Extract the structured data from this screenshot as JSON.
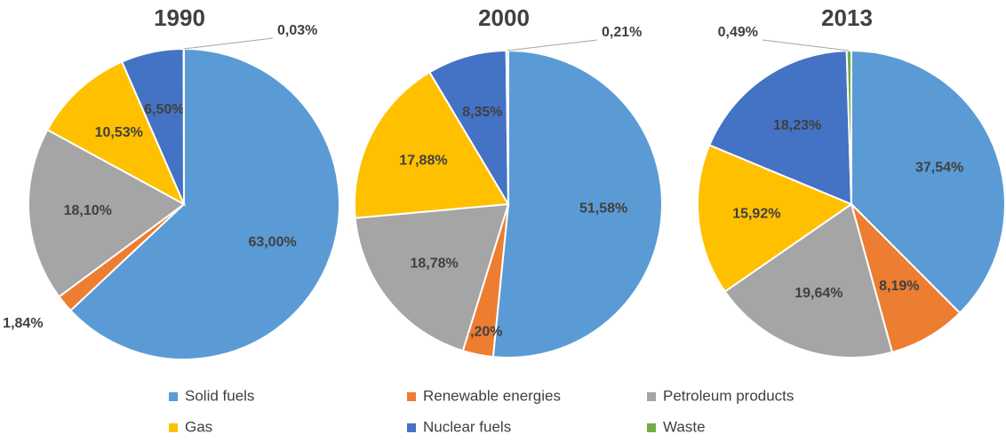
{
  "chart_data": [
    {
      "type": "pie",
      "title": "1990",
      "categories": [
        "Solid fuels",
        "Renewable energies",
        "Petroleum products",
        "Gas",
        "Nuclear fuels",
        "Waste"
      ],
      "values": [
        63.0,
        1.84,
        18.1,
        10.53,
        6.5,
        0.03
      ],
      "value_labels": [
        "63,00%",
        "1,84%",
        "18,10%",
        "10,53%",
        "6,50%",
        "0,03%"
      ],
      "colors": [
        "#5b9bd5",
        "#ed7d31",
        "#a5a5a5",
        "#ffc000",
        "#4472c4",
        "#70ad47"
      ]
    },
    {
      "type": "pie",
      "title": "2000",
      "categories": [
        "Solid fuels",
        "Renewable energies",
        "Petroleum products",
        "Gas",
        "Nuclear fuels",
        "Waste"
      ],
      "values": [
        51.58,
        3.2,
        18.78,
        17.88,
        8.35,
        0.21
      ],
      "value_labels": [
        "51,58%",
        "3,20%",
        "18,78%",
        "17,88%",
        "8,35%",
        "0,21%"
      ],
      "colors": [
        "#5b9bd5",
        "#ed7d31",
        "#a5a5a5",
        "#ffc000",
        "#4472c4",
        "#70ad47"
      ]
    },
    {
      "type": "pie",
      "title": "2013",
      "categories": [
        "Solid fuels",
        "Renewable energies",
        "Petroleum products",
        "Gas",
        "Nuclear fuels",
        "Waste"
      ],
      "values": [
        37.54,
        8.19,
        19.64,
        15.92,
        18.23,
        0.49
      ],
      "value_labels": [
        "37,54%",
        "8,19%",
        "19,64%",
        "15,92%",
        "18,23%",
        "0,49%"
      ],
      "colors": [
        "#5b9bd5",
        "#ed7d31",
        "#a5a5a5",
        "#ffc000",
        "#4472c4",
        "#70ad47"
      ]
    }
  ]
}
